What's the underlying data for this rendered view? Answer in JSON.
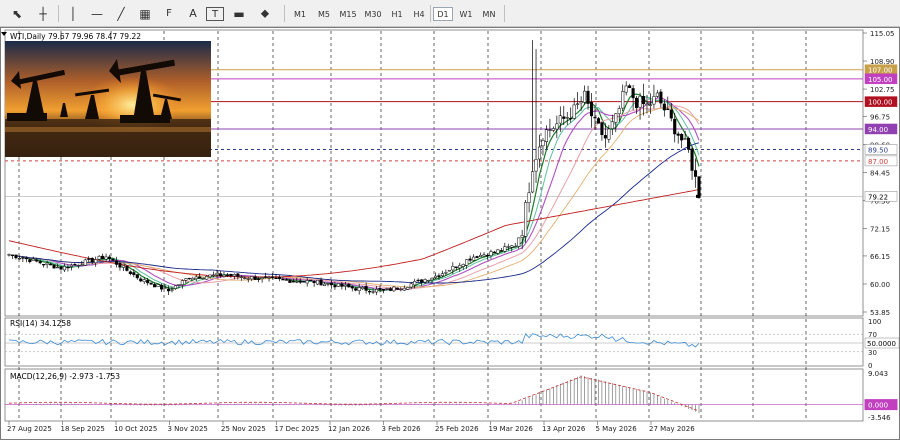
{
  "toolbar": {
    "tools": [
      {
        "name": "cursor-tool",
        "glyph": "⬉"
      },
      {
        "name": "crosshair-tool",
        "glyph": "┼"
      },
      {
        "name": "vertical-line-tool",
        "glyph": "│"
      },
      {
        "name": "horizontal-line-tool",
        "glyph": "—"
      },
      {
        "name": "trendline-tool",
        "glyph": "╱"
      },
      {
        "name": "channel-tool",
        "glyph": "▦"
      },
      {
        "name": "fibonacci-tool",
        "glyph": "F"
      },
      {
        "name": "text-tool",
        "glyph": "A"
      },
      {
        "name": "text-label-tool",
        "glyph": "T"
      },
      {
        "name": "rectangle-tool",
        "glyph": "▬"
      },
      {
        "name": "shapes-tool",
        "glyph": "⬥"
      }
    ],
    "timeframes": [
      "M1",
      "M5",
      "M15",
      "M30",
      "H1",
      "H4",
      "D1",
      "W1",
      "MN"
    ],
    "active_timeframe": "D1"
  },
  "symbol_header": "WTI,Daily  79.67 79.96 78.47 79.22",
  "price_axis": {
    "ticks": [
      "115.05",
      "108.90",
      "102.75",
      "96.75",
      "90.60",
      "84.45",
      "78.30",
      "72.15",
      "66.15",
      "60.00",
      "53.85"
    ],
    "levels": [
      {
        "label": "107.00",
        "color": "#c8a04a",
        "text_color": "#ffffff"
      },
      {
        "label": "105.00",
        "color": "#c040c0",
        "text_color": "#ffffff"
      },
      {
        "label": "100.00",
        "color": "#b01020",
        "text_color": "#ffffff"
      },
      {
        "label": "94.00",
        "color": "#9040b0",
        "text_color": "#ffffff"
      },
      {
        "label": "89.50",
        "color": "#ffffff",
        "text_color": "#2a3a8a"
      },
      {
        "label": "87.00",
        "color": "#ffffff",
        "text_color": "#d04040"
      },
      {
        "label": "79.22",
        "color": "#ffffff",
        "text_color": "#000000"
      }
    ]
  },
  "rsi": {
    "label": "RSI(14) 34.1258",
    "ticks": [
      "100",
      "70",
      "50.0000",
      "30",
      "0"
    ]
  },
  "macd": {
    "label": "MACD(12,26,9) -2.973 -1.753",
    "ticks": [
      "9.043",
      "0.000",
      "-3.546"
    ]
  },
  "date_axis": [
    "27 Aug 2025",
    "18 Sep 2025",
    "10 Oct 2025",
    "3 Nov 2025",
    "25 Nov 2025",
    "17 Dec 2025",
    "12 Jan 2026",
    "3 Feb 2026",
    "25 Feb 2026",
    "19 Mar 2026",
    "13 Apr 2026",
    "5 May 2026",
    "27 May 2026"
  ],
  "colors": {
    "up_candle": "#ffffff",
    "down_candle": "#000000",
    "ma_fast": "#1a7a2a",
    "ma_fast2": "#5fbfa0",
    "ma_mid": "#b050c0",
    "ma_slow": "#e8a0a8",
    "ma_orange": "#e0b070",
    "ma_blue": "#1a2a8a",
    "ma_red": "#c02020",
    "rsi_line": "#3a8ad0",
    "macd_signal": "#c03030"
  }
}
